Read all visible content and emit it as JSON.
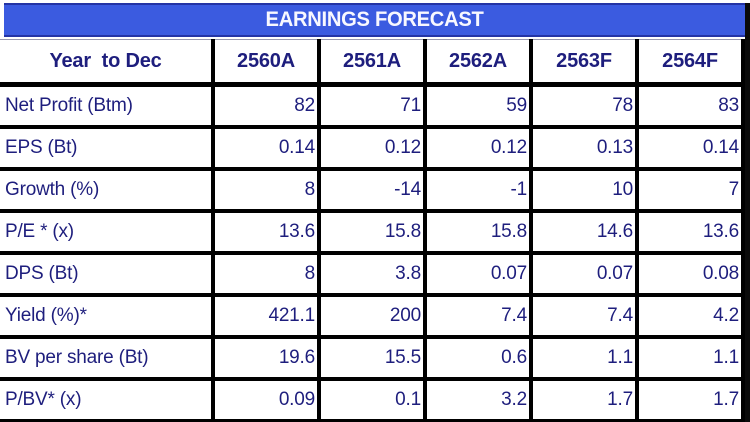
{
  "title_bar": {
    "title": "EARNINGS FORECAST"
  },
  "colors": {
    "title_bg": "#3b5be0",
    "title_border": "#2434a5",
    "title_text": "#f8f8ff",
    "text_navy": "#1e1e7d",
    "table_border": "#000000",
    "background": "#ffffff"
  },
  "chart_data": {
    "type": "table",
    "title": "EARNINGS FORECAST",
    "columns": [
      "Year  to Dec",
      "2560A",
      "2561A",
      "2562A",
      "2563F",
      "2564F"
    ],
    "rows": [
      [
        "Net Profit (Btm)",
        "82",
        "71",
        "59",
        "78",
        "83"
      ],
      [
        "EPS (Bt)",
        "0.14",
        "0.12",
        "0.12",
        "0.13",
        "0.14"
      ],
      [
        "Growth (%)",
        "8",
        "-14",
        "-1",
        "10",
        "7"
      ],
      [
        "P/E * (x)",
        "13.6",
        "15.8",
        "15.8",
        "14.6",
        "13.6"
      ],
      [
        "DPS (Bt)",
        "8",
        "3.8",
        "0.07",
        "0.07",
        "0.08"
      ],
      [
        "Yield (%)*",
        "421.1",
        "200",
        "7.4",
        "7.4",
        "4.2"
      ],
      [
        "BV per share (Bt)",
        "19.6",
        "15.5",
        "0.6",
        "1.1",
        "1.1"
      ],
      [
        "P/BV* (x)",
        "0.09",
        "0.1",
        "3.2",
        "1.7",
        "1.7"
      ]
    ],
    "layout": {
      "header_row_bold": true,
      "values_aligned": "right",
      "labels_aligned": "left",
      "grid": "heavy-black-borders"
    }
  }
}
